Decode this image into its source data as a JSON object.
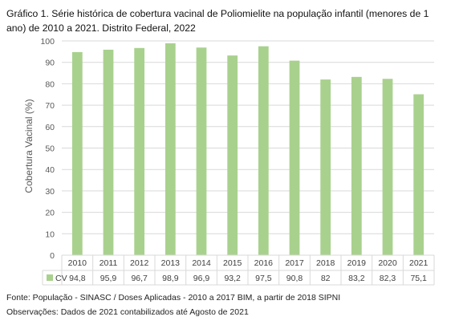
{
  "title": "Gráfico 1. Série histórica de cobertura vacinal de Poliomielite na população infantil (menores de 1 ano) de 2010 a 2021. Distrito Federal, 2022",
  "source": "Fonte: População - SINASC / Doses Aplicadas - 2010 a 2017 BIM, a partir de 2018 SIPNI",
  "observation": "Observações: Dados de 2021 contabilizados até Agosto de 2021",
  "colors": {
    "bar": "#a9d18e",
    "grid": "#d9d9d9",
    "axis_text": "#595959"
  },
  "chart_data": {
    "type": "bar",
    "title": "",
    "xlabel": "",
    "ylabel": "Cobertura Vacinal (%)",
    "categories": [
      "2010",
      "2011",
      "2012",
      "2013",
      "2014",
      "2015",
      "2016",
      "2017",
      "2018",
      "2019",
      "2020",
      "2021"
    ],
    "series": [
      {
        "name": "CV",
        "values": [
          94.8,
          95.9,
          96.7,
          98.9,
          96.9,
          93.2,
          97.5,
          90.8,
          82,
          83.2,
          82.3,
          75.1
        ]
      }
    ],
    "value_labels": [
      "94,8",
      "95,9",
      "96,7",
      "98,9",
      "96,9",
      "93,2",
      "97,5",
      "90,8",
      "82",
      "83,2",
      "82,3",
      "75,1"
    ],
    "ylim": [
      0,
      100
    ],
    "yticks": [
      0,
      10,
      20,
      30,
      40,
      50,
      60,
      70,
      80,
      90,
      100
    ],
    "grid": true,
    "legend": "data-table"
  }
}
